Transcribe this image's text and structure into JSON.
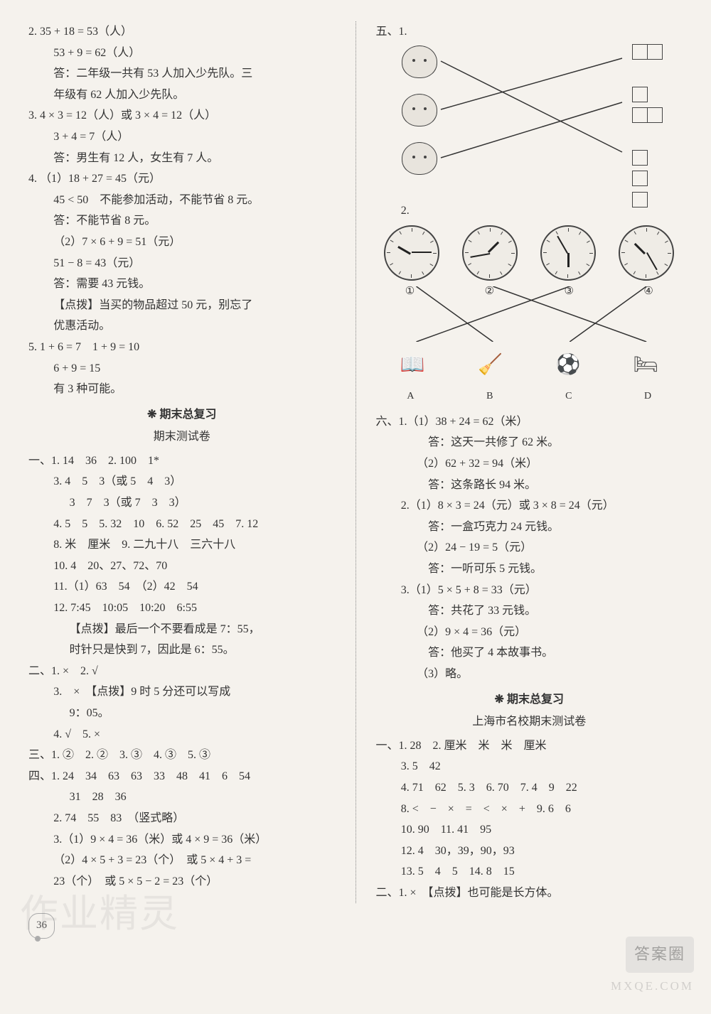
{
  "left": {
    "q2": {
      "l1": "2.  35 + 18 = 53（人）",
      "l2": "53 + 9 = 62（人）",
      "l3": "答：二年级一共有 53 人加入少先队。三",
      "l4": "年级有 62 人加入少先队。"
    },
    "q3": {
      "l1": "3.  4 × 3 = 12（人）或 3 × 4 = 12（人）",
      "l2": "3 + 4 = 7（人）",
      "l3": "答：男生有 12 人，女生有 7 人。"
    },
    "q4": {
      "l1": "4. （1）18 + 27 = 45（元）",
      "l2": "45 < 50　不能参加活动，不能节省 8 元。",
      "l3": "答：不能节省 8 元。",
      "l4": "（2）7 × 6 + 9 = 51（元）",
      "l5": "51 − 8 = 43（元）",
      "l6": "答：需要 43 元钱。",
      "l7": "【点拨】当买的物品超过 50 元，别忘了",
      "l8": "优惠活动。"
    },
    "q5": {
      "l1": "5.  1 + 6 = 7　1 + 9 = 10",
      "l2": "6 + 9 = 15",
      "l3": "有 3 种可能。"
    },
    "secA_title": "期末总复习",
    "secA_sub": "期末测试卷",
    "s1": {
      "l1": "一、1. 14　36　2. 100　1*",
      "l2": "3. 4　5　3（或 5　4　3）",
      "l3": "3　7　3（或 7　3　3）",
      "l4": "4. 5　5　5. 32　10　6. 52　25　45　7. 12",
      "l5": "8. 米　厘米　9. 二九十八　三六十八",
      "l6": "10. 4　20、27、72、70",
      "l7": "11.（1）63　54　（2）42　54",
      "l8": "12. 7:45　10:05　10:20　6:55",
      "l9": "【点拨】最后一个不要看成是 7：55，",
      "l10": "时针只是快到 7，因此是 6：55。"
    },
    "s2": {
      "l1": "二、1. ×　2. √",
      "l2": "3.　×　【点拨】9 时 5 分还可以写成",
      "l3": "9：05。",
      "l4": "4. √　5. ×"
    },
    "s3": "三、1. ②　2. ②　3. ③　4. ③　5. ③",
    "s4": {
      "l1": "四、1. 24　34　63　63　33　48　41　6　54",
      "l2": "31　28　36",
      "l3": "2. 74　55　83　（竖式略）",
      "l4": "3.（1）9 × 4 = 36（米）或 4 × 9 = 36（米）",
      "l5": "（2）4 × 5 + 3 = 23（个）　或 5 × 4 + 3 =",
      "l6": "23（个）　或 5 × 5 − 2 = 23（个）"
    }
  },
  "right": {
    "five_label": "五、1.",
    "five_2": "2.",
    "clock_nums": [
      "①",
      "②",
      "③",
      "④"
    ],
    "act_labels": [
      "A",
      "B",
      "C",
      "D"
    ],
    "s6": {
      "l1": "六、1.（1）38 + 24 = 62（米）",
      "l2": "答：这天一共修了 62 米。",
      "l3": "（2）62 + 32 = 94（米）",
      "l4": "答：这条路长 94 米。",
      "l5": "2.（1）8 × 3 = 24（元）或 3 × 8 = 24（元）",
      "l6": "答：一盒巧克力 24 元钱。",
      "l7": "（2）24 − 19 = 5（元）",
      "l8": "答：一听可乐 5 元钱。",
      "l9": "3.（1）5 × 5 + 8 = 33（元）",
      "l10": "答：共花了 33 元钱。",
      "l11": "（2）9 × 4 = 36（元）",
      "l12": "答：他买了 4 本故事书。",
      "l13": "（3）略。"
    },
    "secB_title": "期末总复习",
    "secB_sub": "上海市名校期末测试卷",
    "r1": {
      "l1": "一、1. 28　2. 厘米　米　米　厘米",
      "l2": "3. 5　42",
      "l3": "4. 71　62　5. 3　6. 70　7. 4　9　22",
      "l4": "8. <　−　×　=　<　×　+　9. 6　6",
      "l5": "10. 90　11. 41　95",
      "l6": "12. 4　30，39，90，93",
      "l7": "13. 5　4　5　14. 8　15"
    },
    "r2": "二、1. ×　【点拨】也可能是长方体。"
  },
  "page_num": "36",
  "wm_left": "作业精灵",
  "wm_r1": "答案圈",
  "wm_r2": "MXQE.COM",
  "clocks": [
    {
      "h": -60,
      "m": 90
    },
    {
      "h": 45,
      "m": -100
    },
    {
      "h": 180,
      "m": -30
    },
    {
      "h": -45,
      "m": 150
    }
  ]
}
